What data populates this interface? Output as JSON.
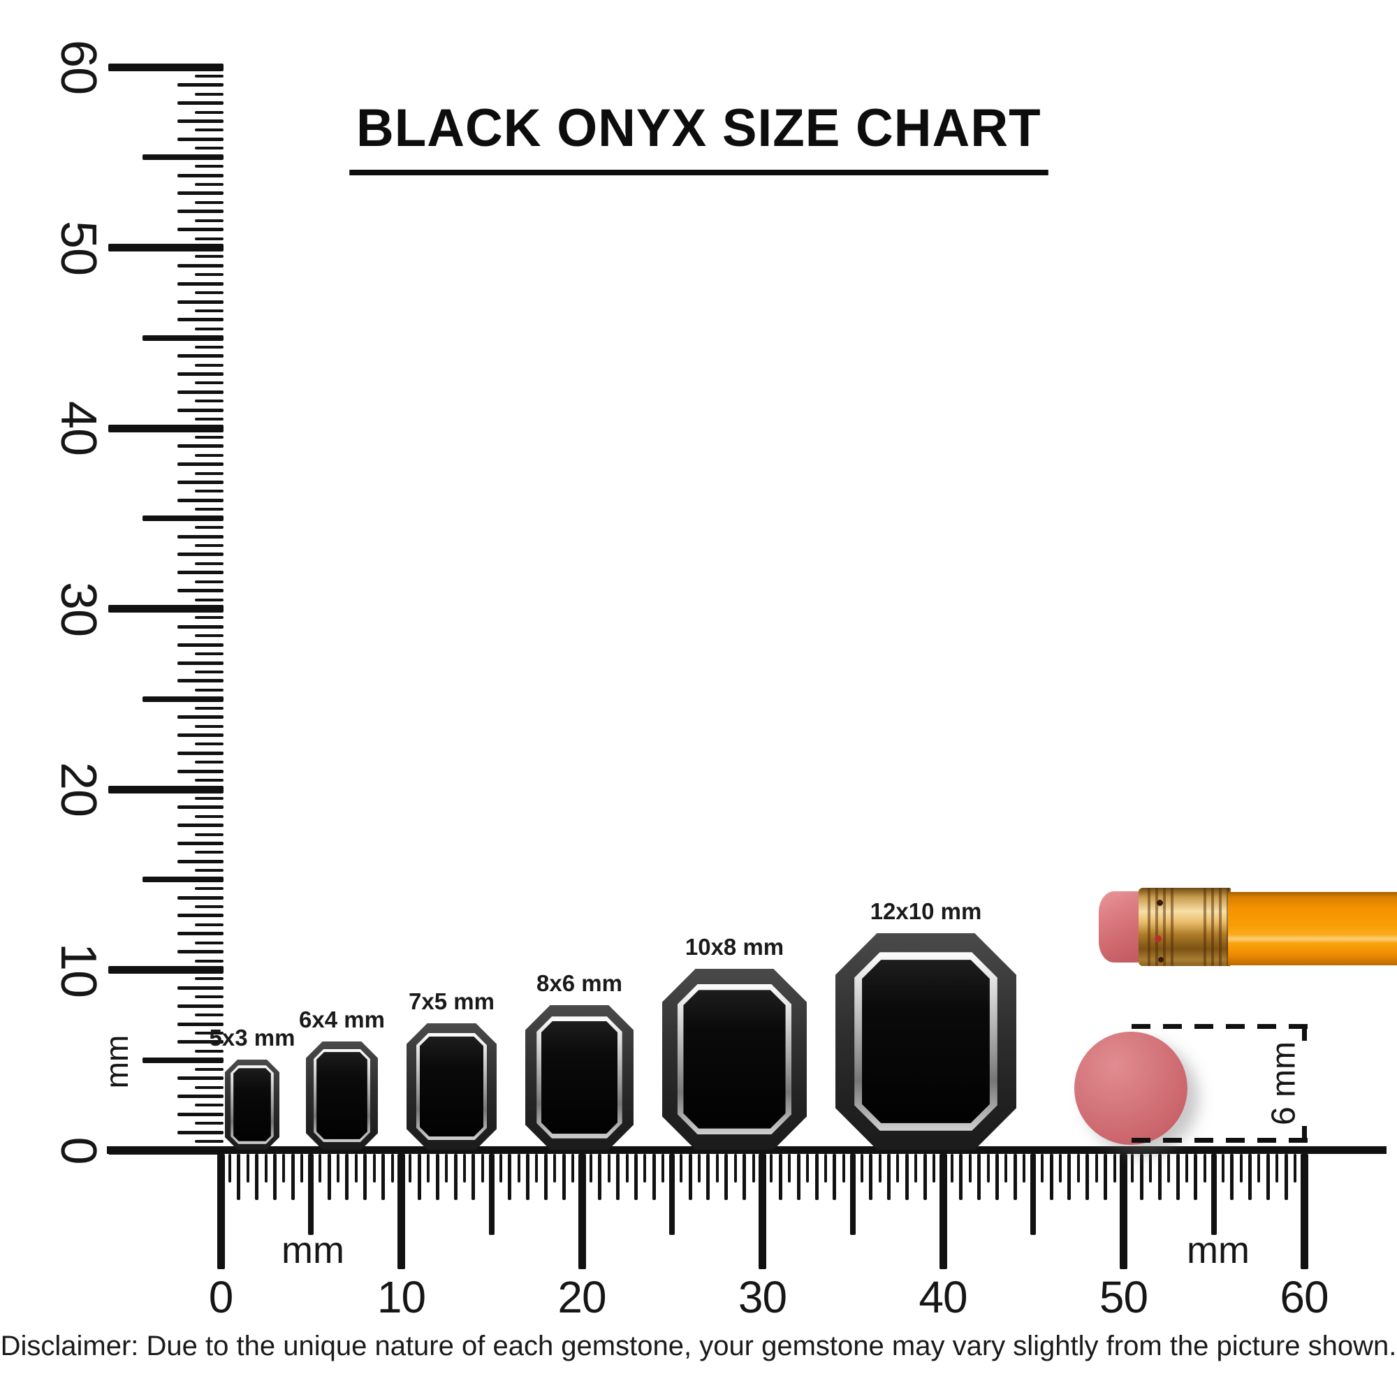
{
  "title": "BLACK ONYX SIZE CHART",
  "vertical_ruler": {
    "unit_label": "mm",
    "min_mm": 0,
    "max_mm": 60,
    "tick_step_mm": 0.5,
    "major_step_mm": 10,
    "major_labels": [
      "0",
      "10",
      "20",
      "30",
      "40",
      "50",
      "60"
    ]
  },
  "horizontal_ruler": {
    "unit_label_left": "mm",
    "unit_label_right": "mm",
    "min_mm": 0,
    "max_mm": 60,
    "tick_step_mm": 0.5,
    "major_step_mm": 10,
    "major_labels": [
      "0",
      "10",
      "20",
      "30",
      "40",
      "50",
      "60"
    ]
  },
  "gems": [
    {
      "label": "5x3 mm",
      "width_mm": 3,
      "length_mm": 5
    },
    {
      "label": "6x4 mm",
      "width_mm": 4,
      "length_mm": 6
    },
    {
      "label": "7x5 mm",
      "width_mm": 5,
      "length_mm": 7
    },
    {
      "label": "8x6 mm",
      "width_mm": 6,
      "length_mm": 8
    },
    {
      "label": "10x8 mm",
      "width_mm": 8,
      "length_mm": 10
    },
    {
      "label": "12x10 mm",
      "width_mm": 10,
      "length_mm": 12
    }
  ],
  "eraser_reference": {
    "label": "6 mm",
    "diameter_mm": 6
  },
  "disclaimer": "Disclaimer: Due to the unique nature of each gemstone, your gemstone may vary slightly from the picture shown.",
  "colors": {
    "ink": "#111111",
    "gem_table": "#0a0a0a",
    "gem_rim": "#2f2f2f",
    "gem_bevel": "#c9c9c9",
    "eraser_pink": "#d06b70",
    "pencil_orange": "#f89d05",
    "ferrule_gold": "#e2b063"
  }
}
